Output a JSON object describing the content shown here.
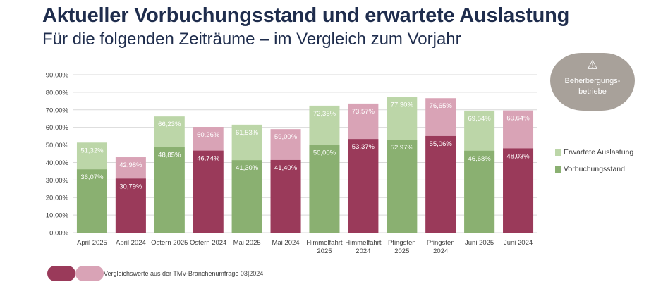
{
  "header": {
    "title": "Aktueller Vorbuchungsstand und erwartete Auslastung",
    "subtitle": "Für die folgenden Zeiträume – im Vergleich zum Vorjahr"
  },
  "badge": {
    "icon": "warning-icon",
    "label": "Beherbergungs-\nbetriebe"
  },
  "legend": {
    "expected_label": "Erwartete Auslastung",
    "booked_label": "Vorbuchungsstand"
  },
  "footnote": {
    "text": "Vergleichswerte aus der TMV-Branchenumfrage 03|2024"
  },
  "colors": {
    "green_light": "#bcd6a8",
    "green_dark": "#8ab071",
    "red_light": "#d9a3b6",
    "red_dark": "#9a3a5a",
    "grid": "#d9d9d9",
    "title": "#1f2d4d",
    "badge": "#a8a19a"
  },
  "chart_data": {
    "type": "bar",
    "stacked": "overlay",
    "ylim": [
      0,
      90
    ],
    "ytick_step": 10,
    "ytick_labels": [
      "0,00%",
      "10,00%",
      "20,00%",
      "30,00%",
      "40,00%",
      "50,00%",
      "60,00%",
      "70,00%",
      "80,00%",
      "90,00%"
    ],
    "categories": [
      [
        "April 2025"
      ],
      [
        "April 2024"
      ],
      [
        "Ostern 2025"
      ],
      [
        "Ostern 2024"
      ],
      [
        "Mai 2025"
      ],
      [
        "Mai 2024"
      ],
      [
        "Himmelfahrt",
        "2025"
      ],
      [
        "Himmelfahrt",
        "2024"
      ],
      [
        "Pfingsten",
        "2025"
      ],
      [
        "Pfingsten",
        "2024"
      ],
      [
        "Juni 2025"
      ],
      [
        "Juni 2024"
      ]
    ],
    "series": [
      {
        "name": "Erwartete Auslastung",
        "values": [
          51.32,
          42.98,
          66.23,
          60.26,
          61.53,
          59.0,
          72.36,
          73.57,
          77.3,
          76.65,
          69.54,
          69.64
        ],
        "labels": [
          "51,32%",
          "42,98%",
          "66,23%",
          "60,26%",
          "61,53%",
          "59,00%",
          "72,36%",
          "73,57%",
          "77,30%",
          "76,65%",
          "69,54%",
          "69,64%"
        ]
      },
      {
        "name": "Vorbuchungsstand",
        "values": [
          36.07,
          30.79,
          48.85,
          46.74,
          41.3,
          41.4,
          50.0,
          53.37,
          52.97,
          55.06,
          46.68,
          48.03
        ],
        "labels": [
          "36,07%",
          "30,79%",
          "48,85%",
          "46,74%",
          "41,30%",
          "41,40%",
          "50,00%",
          "53,37%",
          "52,97%",
          "55,06%",
          "46,68%",
          "48,03%"
        ]
      }
    ],
    "comparison_year": [
      false,
      true,
      false,
      true,
      false,
      true,
      false,
      true,
      false,
      true,
      false,
      true
    ]
  }
}
